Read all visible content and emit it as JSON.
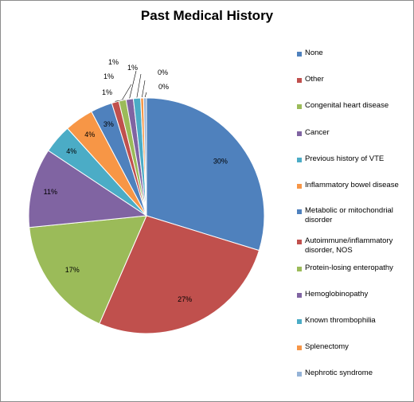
{
  "chart_data": {
    "type": "pie",
    "title": "Past Medical History",
    "legend_position": "right",
    "slices": [
      {
        "label": "None",
        "value": 30,
        "display": "30%",
        "color": "#4f81bd"
      },
      {
        "label": "Other",
        "value": 27,
        "display": "27%",
        "color": "#c0504d"
      },
      {
        "label": "Congenital heart disease",
        "value": 17,
        "display": "17%",
        "color": "#9bbb59"
      },
      {
        "label": "Cancer",
        "value": 11,
        "display": "11%",
        "color": "#8064a2"
      },
      {
        "label": "Previous history of VTE",
        "value": 4,
        "display": "4%",
        "color": "#4bacc6"
      },
      {
        "label": "Inflammatory bowel disease",
        "value": 4,
        "display": "4%",
        "color": "#f79646"
      },
      {
        "label": "Metabolic or mitochondrial disorder",
        "value": 3,
        "display": "3%",
        "color": "#4f81bd"
      },
      {
        "label": "Autoimmune/inflammatory disorder, NOS",
        "value": 1,
        "display": "1%",
        "color": "#c0504d"
      },
      {
        "label": "Protein-losing enteropathy",
        "value": 1,
        "display": "1%",
        "color": "#9bbb59"
      },
      {
        "label": "Hemoglobinopathy",
        "value": 1,
        "display": "1%",
        "color": "#8064a2"
      },
      {
        "label": "Known thrombophilia",
        "value": 1,
        "display": "1%",
        "color": "#4bacc6"
      },
      {
        "label": "Splenectomy",
        "value": 0.4,
        "display": "0%",
        "color": "#f79646"
      },
      {
        "label": "Nephrotic syndrome",
        "value": 0.4,
        "display": "0%",
        "color": "#95b3d7"
      }
    ]
  }
}
